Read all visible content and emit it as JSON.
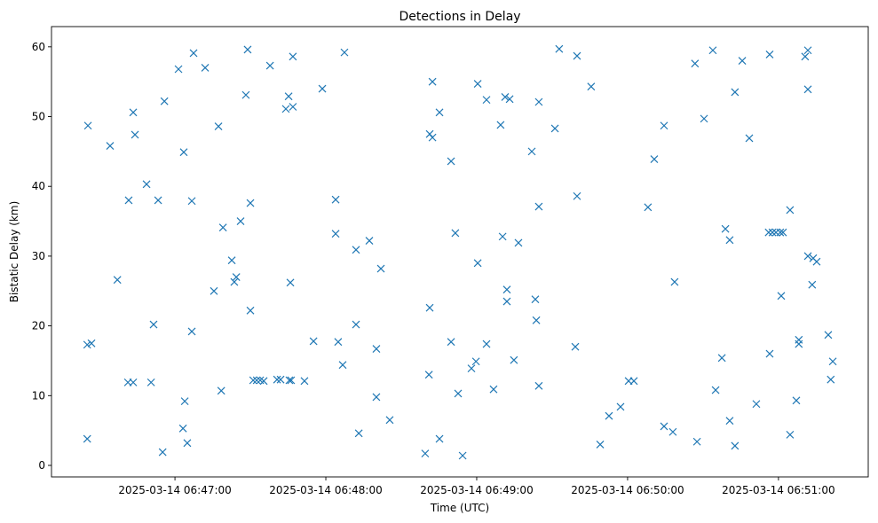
{
  "chart_data": {
    "type": "scatter",
    "title": "Detections in Delay",
    "xlabel": "Time (UTC)",
    "ylabel": "Bistatic Delay (km)",
    "x_units": "seconds relative to 2025-03-14 06:47:00 UTC",
    "xlim": [
      -49.1,
      275.7
    ],
    "ylim": [
      -1.65,
      62.9
    ],
    "x_ticks": [
      {
        "value": 0,
        "label": "2025-03-14 06:47:00"
      },
      {
        "value": 60,
        "label": "2025-03-14 06:48:00"
      },
      {
        "value": 120,
        "label": "2025-03-14 06:49:00"
      },
      {
        "value": 180,
        "label": "2025-03-14 06:50:00"
      },
      {
        "value": 240,
        "label": "2025-03-14 06:51:00"
      }
    ],
    "y_ticks": [
      {
        "value": 0,
        "label": "0"
      },
      {
        "value": 10,
        "label": "10"
      },
      {
        "value": 20,
        "label": "20"
      },
      {
        "value": 30,
        "label": "30"
      },
      {
        "value": 40,
        "label": "40"
      },
      {
        "value": 50,
        "label": "50"
      },
      {
        "value": 60,
        "label": "60"
      }
    ],
    "grid": false,
    "marker": "x",
    "color": "#1f77b4",
    "points": [
      [
        -34.6,
        48.7
      ],
      [
        -34.9,
        17.3
      ],
      [
        -33.2,
        17.5
      ],
      [
        -34.9,
        3.8
      ],
      [
        -25.8,
        45.8
      ],
      [
        -22.9,
        26.6
      ],
      [
        -18.4,
        38.0
      ],
      [
        -18.7,
        11.9
      ],
      [
        -16.6,
        11.9
      ],
      [
        -16.6,
        50.6
      ],
      [
        -15.9,
        47.4
      ],
      [
        -11.3,
        40.3
      ],
      [
        -9.5,
        11.9
      ],
      [
        -8.5,
        20.2
      ],
      [
        -6.7,
        38.0
      ],
      [
        -4.9,
        1.9
      ],
      [
        -4.2,
        52.2
      ],
      [
        1.4,
        56.8
      ],
      [
        3.5,
        44.9
      ],
      [
        3.2,
        5.3
      ],
      [
        3.9,
        9.2
      ],
      [
        4.9,
        3.2
      ],
      [
        6.7,
        37.9
      ],
      [
        6.7,
        19.2
      ],
      [
        7.4,
        59.1
      ],
      [
        12.0,
        57.0
      ],
      [
        15.5,
        25.0
      ],
      [
        17.3,
        48.6
      ],
      [
        18.4,
        10.7
      ],
      [
        19.1,
        34.1
      ],
      [
        22.6,
        29.4
      ],
      [
        23.6,
        26.3
      ],
      [
        24.4,
        27.0
      ],
      [
        26.1,
        35.0
      ],
      [
        28.2,
        53.1
      ],
      [
        28.9,
        59.6
      ],
      [
        30.0,
        37.6
      ],
      [
        30.0,
        22.2
      ],
      [
        31.1,
        12.2
      ],
      [
        32.5,
        12.2
      ],
      [
        33.9,
        12.2
      ],
      [
        35.3,
        12.1
      ],
      [
        37.8,
        57.3
      ],
      [
        40.6,
        12.3
      ],
      [
        42.0,
        12.3
      ],
      [
        44.1,
        51.1
      ],
      [
        45.2,
        52.9
      ],
      [
        45.5,
        12.2
      ],
      [
        46.2,
        12.2
      ],
      [
        46.9,
        51.4
      ],
      [
        45.9,
        26.2
      ],
      [
        46.9,
        58.6
      ],
      [
        51.5,
        12.1
      ],
      [
        55.1,
        17.8
      ],
      [
        58.6,
        54.0
      ],
      [
        63.9,
        38.1
      ],
      [
        63.9,
        33.2
      ],
      [
        64.9,
        17.7
      ],
      [
        66.7,
        14.4
      ],
      [
        67.4,
        59.2
      ],
      [
        72.0,
        30.9
      ],
      [
        72.0,
        20.2
      ],
      [
        73.1,
        4.6
      ],
      [
        77.3,
        32.2
      ],
      [
        80.1,
        16.7
      ],
      [
        80.1,
        9.8
      ],
      [
        81.9,
        28.2
      ],
      [
        85.4,
        6.5
      ],
      [
        99.5,
        1.7
      ],
      [
        101.0,
        13.0
      ],
      [
        101.3,
        22.6
      ],
      [
        102.4,
        55.0
      ],
      [
        101.3,
        47.5
      ],
      [
        102.4,
        47.0
      ],
      [
        105.2,
        50.6
      ],
      [
        105.2,
        3.8
      ],
      [
        109.8,
        43.6
      ],
      [
        109.8,
        17.7
      ],
      [
        111.5,
        33.3
      ],
      [
        112.6,
        10.3
      ],
      [
        114.4,
        1.4
      ],
      [
        117.9,
        13.9
      ],
      [
        119.7,
        14.9
      ],
      [
        120.4,
        29.0
      ],
      [
        120.4,
        54.7
      ],
      [
        123.9,
        52.4
      ],
      [
        123.9,
        17.4
      ],
      [
        126.7,
        10.9
      ],
      [
        129.5,
        48.8
      ],
      [
        130.3,
        32.8
      ],
      [
        131.3,
        52.8
      ],
      [
        133.1,
        52.5
      ],
      [
        132.0,
        25.2
      ],
      [
        132.0,
        23.5
      ],
      [
        134.8,
        15.1
      ],
      [
        136.6,
        31.9
      ],
      [
        141.9,
        45.0
      ],
      [
        143.3,
        23.8
      ],
      [
        143.7,
        20.8
      ],
      [
        144.7,
        52.1
      ],
      [
        144.7,
        37.1
      ],
      [
        144.7,
        11.4
      ],
      [
        151.1,
        48.3
      ],
      [
        152.8,
        59.7
      ],
      [
        159.2,
        17.0
      ],
      [
        159.9,
        58.7
      ],
      [
        159.9,
        38.6
      ],
      [
        165.5,
        54.3
      ],
      [
        169.1,
        3.0
      ],
      [
        172.6,
        7.1
      ],
      [
        177.2,
        8.4
      ],
      [
        180.4,
        12.1
      ],
      [
        182.5,
        12.1
      ],
      [
        188.1,
        37.0
      ],
      [
        190.6,
        43.9
      ],
      [
        194.5,
        48.7
      ],
      [
        194.5,
        5.6
      ],
      [
        198.0,
        4.8
      ],
      [
        198.7,
        26.3
      ],
      [
        206.8,
        57.6
      ],
      [
        207.6,
        3.4
      ],
      [
        210.4,
        49.7
      ],
      [
        213.9,
        59.5
      ],
      [
        215.0,
        10.8
      ],
      [
        217.5,
        15.4
      ],
      [
        218.9,
        33.9
      ],
      [
        220.6,
        32.3
      ],
      [
        220.6,
        6.4
      ],
      [
        222.7,
        53.5
      ],
      [
        222.7,
        2.8
      ],
      [
        225.6,
        58.0
      ],
      [
        228.4,
        46.9
      ],
      [
        231.2,
        8.8
      ],
      [
        236.1,
        33.4
      ],
      [
        236.5,
        58.9
      ],
      [
        236.5,
        16.0
      ],
      [
        237.6,
        33.4
      ],
      [
        239.0,
        33.4
      ],
      [
        240.7,
        33.4
      ],
      [
        241.8,
        33.4
      ],
      [
        241.1,
        24.3
      ],
      [
        244.6,
        36.6
      ],
      [
        244.6,
        4.4
      ],
      [
        247.1,
        9.3
      ],
      [
        248.1,
        18.0
      ],
      [
        248.1,
        17.4
      ],
      [
        250.6,
        58.6
      ],
      [
        251.7,
        59.5
      ],
      [
        251.7,
        53.9
      ],
      [
        251.7,
        30.0
      ],
      [
        253.4,
        25.9
      ],
      [
        253.8,
        29.7
      ],
      [
        255.2,
        29.2
      ],
      [
        259.8,
        18.7
      ],
      [
        260.8,
        12.3
      ],
      [
        261.6,
        14.9
      ]
    ]
  }
}
